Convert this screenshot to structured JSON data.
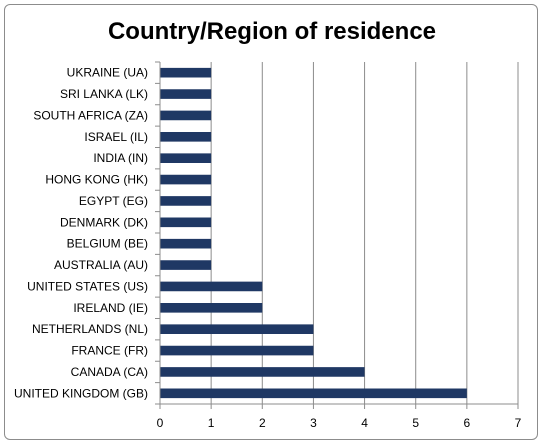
{
  "chart_data": {
    "type": "bar",
    "orientation": "horizontal",
    "title": "Country/Region of residence",
    "xlabel": "",
    "ylabel": "",
    "categories": [
      "UNITED KINGDOM (GB)",
      "CANADA (CA)",
      "FRANCE (FR)",
      "NETHERLANDS (NL)",
      "IRELAND (IE)",
      "UNITED STATES (US)",
      "AUSTRALIA (AU)",
      "BELGIUM (BE)",
      "DENMARK (DK)",
      "EGYPT (EG)",
      "HONG KONG (HK)",
      "INDIA (IN)",
      "ISRAEL (IL)",
      "SOUTH AFRICA (ZA)",
      "SRI LANKA (LK)",
      "UKRAINE (UA)"
    ],
    "values": [
      6,
      4,
      3,
      3,
      2,
      2,
      1,
      1,
      1,
      1,
      1,
      1,
      1,
      1,
      1,
      1
    ],
    "xlim": [
      0,
      7
    ],
    "xticks": [
      "0",
      "1",
      "2",
      "3",
      "4",
      "5",
      "6",
      "7"
    ],
    "grid": "vertical",
    "legend": "none",
    "colors": {
      "bar": "#1f3864",
      "grid": "#8c8c8c",
      "axis": "#8c8c8c"
    }
  }
}
